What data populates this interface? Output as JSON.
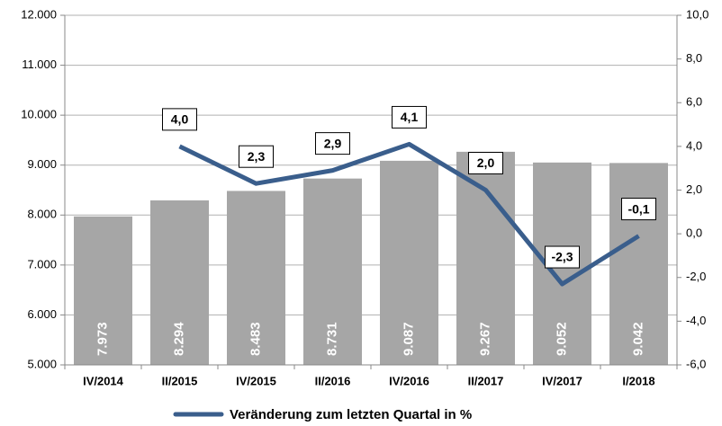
{
  "chart_data": {
    "type": "bar_line",
    "categories": [
      "IV/2014",
      "II/2015",
      "IV/2015",
      "II/2016",
      "IV/2016",
      "II/2017",
      "IV/2017",
      "I/2018"
    ],
    "series": [
      {
        "type": "bar",
        "color": "#a6a6a6",
        "values": [
          7973,
          8294,
          8483,
          8731,
          9087,
          9267,
          9052,
          9042
        ],
        "value_labels": [
          "7.973",
          "8.294",
          "8.483",
          "8.731",
          "9.087",
          "9.267",
          "9.052",
          "9.042"
        ]
      },
      {
        "type": "line",
        "name": "Veränderung zum letzten Quartal in %",
        "color": "#3a5e8c",
        "axis": "y2",
        "values": [
          null,
          4.0,
          2.3,
          2.9,
          4.1,
          2.0,
          -2.3,
          -0.1
        ],
        "value_labels": [
          null,
          "4,0",
          "2,3",
          "2,9",
          "4,1",
          "2,0",
          "-2,3",
          "-0,1"
        ]
      }
    ],
    "ylim": [
      5000,
      12000
    ],
    "yticks": [
      {
        "value": 5000,
        "label": "5.000"
      },
      {
        "value": 6000,
        "label": "6.000"
      },
      {
        "value": 7000,
        "label": "7.000"
      },
      {
        "value": 8000,
        "label": "8.000"
      },
      {
        "value": 9000,
        "label": "9.000"
      },
      {
        "value": 10000,
        "label": "10.000"
      },
      {
        "value": 11000,
        "label": "11.000"
      },
      {
        "value": 12000,
        "label": "12.000"
      }
    ],
    "y2lim": [
      -6,
      10
    ],
    "y2ticks": [
      {
        "value": -6,
        "label": "-6,0"
      },
      {
        "value": -4,
        "label": "-4,0"
      },
      {
        "value": -2,
        "label": "-2,0"
      },
      {
        "value": 0,
        "label": "0,0"
      },
      {
        "value": 2,
        "label": "2,0"
      },
      {
        "value": 4,
        "label": "4,0"
      },
      {
        "value": 6,
        "label": "6,0"
      },
      {
        "value": 8,
        "label": "8,0"
      },
      {
        "value": 10,
        "label": "10,0"
      }
    ],
    "grid": true,
    "legend": "bottom"
  }
}
